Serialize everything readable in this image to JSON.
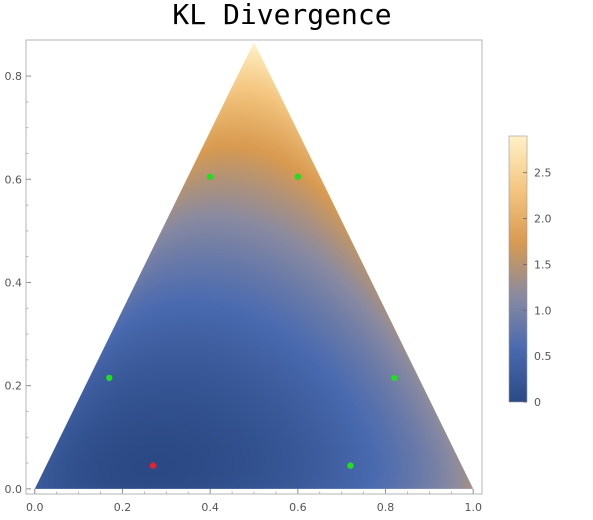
{
  "chart_data": {
    "type": "heatmap",
    "title": "KL Divergence",
    "xlabel": "",
    "ylabel": "",
    "xlim": [
      -0.02,
      1.02
    ],
    "ylim": [
      -0.01,
      0.87
    ],
    "x_ticks": [
      0.0,
      0.2,
      0.4,
      0.6,
      0.8,
      1.0
    ],
    "x_tick_labels": [
      "0.0",
      "0.2",
      "0.4",
      "0.6",
      "0.8",
      "1.0"
    ],
    "y_ticks": [
      0.0,
      0.2,
      0.4,
      0.6,
      0.8
    ],
    "y_tick_labels": [
      "0.0",
      "0.2",
      "0.4",
      "0.6",
      "0.8"
    ],
    "region": {
      "shape": "triangle",
      "vertices": [
        [
          0.0,
          0.0
        ],
        [
          1.0,
          0.0
        ],
        [
          0.5,
          0.866
        ]
      ]
    },
    "minimum_point": {
      "x": 0.27,
      "y": 0.045,
      "color": "#e8202a"
    },
    "marker_points": {
      "color": "#22dd22",
      "points": [
        {
          "x": 0.4,
          "y": 0.605
        },
        {
          "x": 0.6,
          "y": 0.605
        },
        {
          "x": 0.17,
          "y": 0.215
        },
        {
          "x": 0.82,
          "y": 0.215
        },
        {
          "x": 0.72,
          "y": 0.045
        }
      ]
    },
    "colorbar": {
      "range": [
        0,
        2.9
      ],
      "ticks": [
        0,
        0.5,
        1.0,
        1.5,
        2.0,
        2.5
      ],
      "tick_labels": [
        "0",
        "0.5",
        "1.0",
        "1.5",
        "2.0",
        "2.5"
      ],
      "colors": [
        "#2b4a85",
        "#4a6ab0",
        "#8a8aa0",
        "#d89a50",
        "#f4c680",
        "#fff1c8"
      ]
    },
    "grid": false,
    "legend": "colorbar-right"
  }
}
